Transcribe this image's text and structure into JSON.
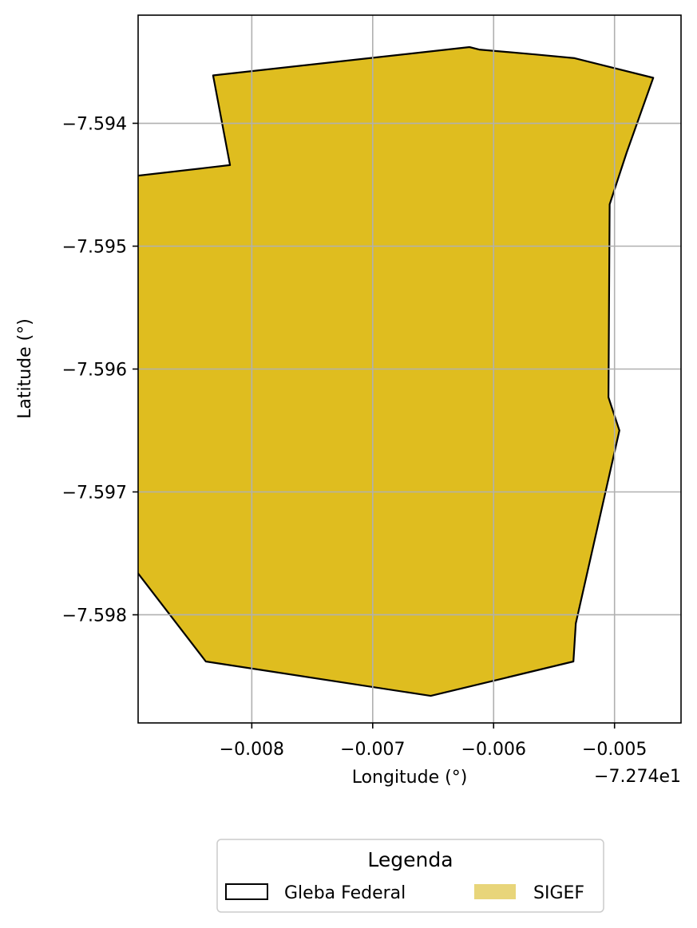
{
  "chart_data": {
    "type": "map",
    "xlabel": "Longitude (°)",
    "ylabel": "Latitude (°)",
    "x_offset_label": "−7.274e1",
    "x_offset": -72.74,
    "xlim": [
      -0.00894,
      -0.00445
    ],
    "ylim": [
      -7.59888,
      -7.59312
    ],
    "xticks": [
      -0.008,
      -0.007,
      -0.006,
      -0.005
    ],
    "xtick_labels": [
      "−0.008",
      "−0.007",
      "−0.006",
      "−0.005"
    ],
    "yticks": [
      -7.594,
      -7.595,
      -7.596,
      -7.597,
      -7.598
    ],
    "ytick_labels": [
      "−7.594",
      "−7.595",
      "−7.596",
      "−7.597",
      "−7.598"
    ],
    "grid": true,
    "legend": {
      "title": "Legenda",
      "placement": "below plot",
      "entries": [
        {
          "label": "Gleba Federal",
          "style": "outline",
          "color": "#000000"
        },
        {
          "label": "SIGEF",
          "style": "fill",
          "color": "#e8d57a"
        }
      ]
    },
    "polygon": {
      "name": "SIGEF",
      "fill": "#dfbd1f",
      "stroke": "#000000",
      "coordinates": [
        [
          -0.00832,
          -7.59361
        ],
        [
          -0.0062,
          -7.59338
        ],
        [
          -0.00612,
          -7.5934
        ],
        [
          -0.00565,
          -7.59344
        ],
        [
          -0.00533,
          -7.59347
        ],
        [
          -0.00468,
          -7.59363
        ],
        [
          -0.0049,
          -7.59424
        ],
        [
          -0.00504,
          -7.59466
        ],
        [
          -0.00505,
          -7.59623
        ],
        [
          -0.00496,
          -7.5965
        ],
        [
          -0.00532,
          -7.59807
        ],
        [
          -0.00534,
          -7.59838
        ],
        [
          -0.00652,
          -7.59866
        ],
        [
          -0.00838,
          -7.59838
        ],
        [
          -0.00906,
          -7.59751
        ],
        [
          -0.00914,
          -7.59728
        ],
        [
          -0.00952,
          -7.59613
        ],
        [
          -0.0097,
          -7.59519
        ],
        [
          -0.00977,
          -7.59452
        ],
        [
          -0.00818,
          -7.59434
        ],
        [
          -0.00832,
          -7.59361
        ]
      ]
    }
  }
}
